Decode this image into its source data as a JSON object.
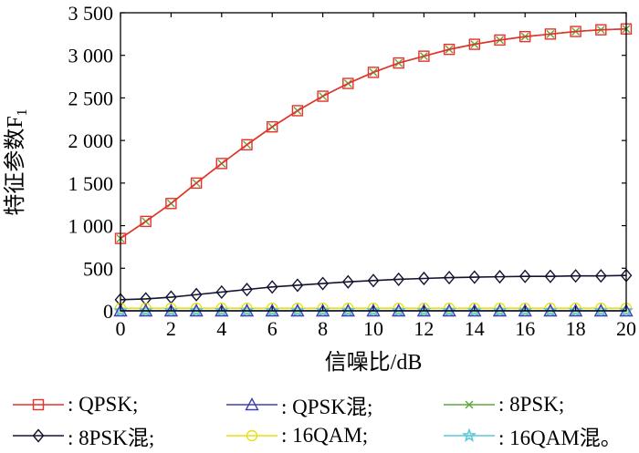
{
  "chart_data": {
    "type": "line",
    "xlabel": "信噪比/dB",
    "ylabel": "特征参数F",
    "ylabel_sub": "1",
    "xlim": [
      0,
      20
    ],
    "ylim": [
      0,
      3500
    ],
    "xticks": [
      "0",
      "2",
      "4",
      "6",
      "8",
      "10",
      "12",
      "14",
      "16",
      "18",
      "20"
    ],
    "yticks": [
      "0",
      "500",
      "1 000",
      "1 500",
      "2 000",
      "2 500",
      "3 000",
      "3 500"
    ],
    "x": [
      0,
      1,
      2,
      3,
      4,
      5,
      6,
      7,
      8,
      9,
      10,
      11,
      12,
      13,
      14,
      15,
      16,
      17,
      18,
      19,
      20
    ],
    "series": [
      {
        "name": "QPSK;",
        "color": "#e8302c",
        "marker": "square",
        "values": [
          850,
          1050,
          1260,
          1500,
          1730,
          1950,
          2160,
          2350,
          2520,
          2670,
          2800,
          2910,
          2990,
          3070,
          3130,
          3180,
          3220,
          3250,
          3280,
          3300,
          3310
        ]
      },
      {
        "name": "QPSK混;",
        "color": "#4040b0",
        "marker": "triangle",
        "values": [
          0,
          0,
          0,
          0,
          0,
          0,
          0,
          0,
          0,
          0,
          0,
          0,
          0,
          0,
          0,
          0,
          0,
          0,
          0,
          0,
          0
        ]
      },
      {
        "name": "8PSK;",
        "color": "#5aa83a",
        "marker": "x",
        "values": [
          850,
          1050,
          1260,
          1500,
          1730,
          1950,
          2160,
          2350,
          2520,
          2670,
          2800,
          2910,
          2990,
          3070,
          3130,
          3180,
          3220,
          3250,
          3280,
          3300,
          3310
        ]
      },
      {
        "name": "8PSK混;",
        "color": "#141430",
        "marker": "diamond",
        "values": [
          130,
          140,
          160,
          190,
          220,
          250,
          280,
          300,
          320,
          340,
          355,
          370,
          380,
          390,
          395,
          400,
          405,
          405,
          410,
          410,
          415
        ]
      },
      {
        "name": "16QAM;",
        "color": "#e8e010",
        "marker": "circle",
        "values": [
          30,
          30,
          30,
          30,
          30,
          30,
          30,
          30,
          30,
          30,
          30,
          30,
          30,
          30,
          30,
          30,
          30,
          30,
          30,
          30,
          30
        ]
      },
      {
        "name": "16QAM混。",
        "color": "#5ac8d8",
        "marker": "star",
        "values": [
          0,
          0,
          0,
          0,
          0,
          0,
          0,
          0,
          0,
          0,
          0,
          0,
          0,
          0,
          0,
          0,
          0,
          0,
          0,
          0,
          0
        ]
      }
    ],
    "draw_order": [
      3,
      4,
      5,
      1,
      2,
      0
    ],
    "legend_prefix": ": ",
    "grid": false,
    "legend_position": "bottom"
  }
}
